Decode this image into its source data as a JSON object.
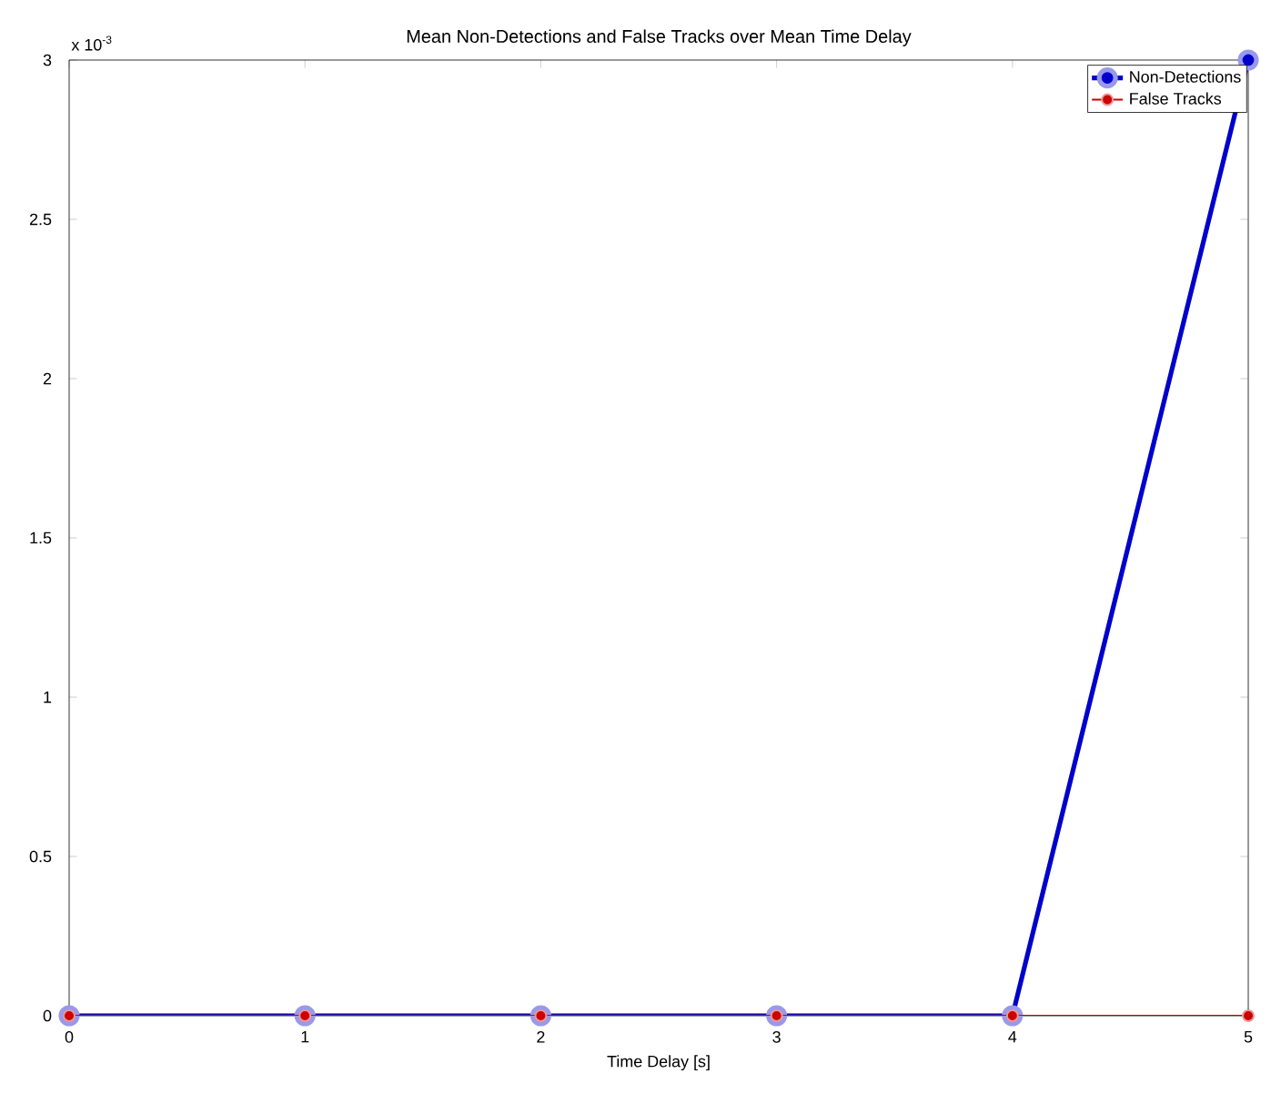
{
  "chart_data": {
    "type": "line",
    "title": "Mean Non-Detections and False Tracks over Mean Time Delay",
    "xlabel": "Time Delay [s]",
    "annotations": [
      "x 10$^{-3}$"
    ],
    "x": [
      0,
      1,
      2,
      3,
      4,
      5
    ],
    "series": [
      {
        "name": "Non-Detections",
        "color": "#0000cc",
        "values": [
          0,
          0,
          0,
          0,
          0,
          3
        ]
      },
      {
        "name": "False Tracks",
        "color": "#cc0000",
        "values": [
          0,
          0,
          0,
          0,
          0,
          0
        ]
      }
    ],
    "xlim": [
      0,
      5
    ],
    "ylim": [
      0,
      3
    ],
    "xticks": [
      0,
      1,
      2,
      3,
      4,
      5
    ],
    "yticks": [
      0,
      0.5,
      1,
      1.5,
      2,
      2.5,
      3
    ],
    "legend": "top right",
    "marker": "circle",
    "line_style": "solid"
  }
}
